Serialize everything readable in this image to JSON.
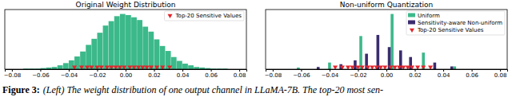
{
  "chart_data": [
    {
      "type": "histogram",
      "title": "Original Weight Distribution",
      "bins": [
        -0.072,
        -0.068,
        -0.064,
        -0.06,
        -0.056,
        -0.052,
        -0.048,
        -0.044,
        -0.04,
        -0.036,
        -0.032,
        -0.028,
        -0.024,
        -0.02,
        -0.016,
        -0.012,
        -0.008,
        -0.004,
        0,
        0.004,
        0.008,
        0.012,
        0.016,
        0.02,
        0.024,
        0.028,
        0.032,
        0.036,
        0.04,
        0.044,
        0.048,
        0.052,
        0.056,
        0.06,
        0.064,
        0.068,
        0.072
      ],
      "values": [
        1,
        1,
        1,
        2,
        3,
        4,
        7,
        11,
        16,
        23,
        32,
        44,
        55,
        66,
        79,
        87,
        96,
        100,
        98,
        94,
        89,
        77,
        68,
        54,
        42,
        33,
        22,
        15,
        10,
        7,
        4,
        3,
        2,
        1,
        1,
        1
      ],
      "color": "#3cb98a",
      "xlim": [
        -0.085,
        0.085
      ],
      "xticks": [
        {
          "value": -0.08,
          "label": "−0.08"
        },
        {
          "value": -0.06,
          "label": "−0.06"
        },
        {
          "value": -0.04,
          "label": "−0.04"
        },
        {
          "value": -0.02,
          "label": "−0.02"
        },
        {
          "value": 0,
          "label": "0.00"
        },
        {
          "value": 0.02,
          "label": "0.02"
        },
        {
          "value": 0.04,
          "label": "0.04"
        },
        {
          "value": 0.06,
          "label": "0.06"
        },
        {
          "value": 0.08,
          "label": "0.08"
        }
      ],
      "ylim": [
        0,
        108
      ],
      "tick_labels": "x",
      "legend": "upper right",
      "series": [
        {
          "name": "Top-20 Sensitive Values",
          "type": "scatter",
          "marker": "triangle_down",
          "color": "#e3242b",
          "x": [
            -0.036,
            -0.031,
            -0.027,
            -0.024,
            -0.02,
            -0.017,
            -0.013,
            -0.01,
            -0.007,
            -0.004,
            -0.001,
            0.003,
            0.006,
            0.009,
            0.012,
            0.015,
            0.018,
            0.022,
            0.026,
            0.031
          ],
          "values": [
            4,
            4,
            4,
            4,
            4,
            4,
            4,
            4,
            4,
            4,
            4,
            4,
            4,
            4,
            4,
            4,
            4,
            4,
            4,
            4
          ]
        }
      ]
    },
    {
      "type": "bar",
      "title": "Non-uniform Quantization",
      "xlim": [
        -0.085,
        0.085
      ],
      "xticks": [
        {
          "value": -0.08,
          "label": "−0.08"
        },
        {
          "value": -0.06,
          "label": "−0.06"
        },
        {
          "value": -0.04,
          "label": "−0.04"
        },
        {
          "value": -0.02,
          "label": "−0.02"
        },
        {
          "value": 0,
          "label": "0.00"
        },
        {
          "value": 0.02,
          "label": "0.02"
        },
        {
          "value": 0.04,
          "label": "0.04"
        },
        {
          "value": 0.06,
          "label": "0.06"
        },
        {
          "value": 0.08,
          "label": "0.08"
        }
      ],
      "ylim": [
        0,
        108
      ],
      "tick_labels": "x",
      "legend": "upper right",
      "series": [
        {
          "name": "Uniform",
          "type": "bar",
          "color": "#3cb98a",
          "x": [
            -0.062,
            -0.04,
            -0.018,
            0.004,
            0.026,
            0.048
          ],
          "values": [
            3,
            12,
            60,
            100,
            30,
            5
          ]
        },
        {
          "name": "Sensitivity-aware Non-uniform",
          "type": "bar",
          "color": "#3b2c6e",
          "x": [
            -0.048,
            -0.032,
            -0.022,
            -0.014,
            -0.006,
            0.002,
            0.01,
            0.017,
            0.034,
            0.046
          ],
          "values": [
            4,
            9,
            16,
            28,
            62,
            40,
            34,
            22,
            12,
            5
          ]
        },
        {
          "name": "Top-20 Sensitive Values",
          "type": "scatter",
          "marker": "triangle_down",
          "color": "#e3242b",
          "x": [
            -0.036,
            -0.031,
            -0.027,
            -0.024,
            -0.02,
            -0.017,
            -0.013,
            -0.01,
            -0.007,
            -0.004,
            -0.001,
            0.003,
            0.006,
            0.009,
            0.012,
            0.015,
            0.018,
            0.022,
            0.026,
            0.031
          ],
          "values": [
            4,
            4,
            4,
            4,
            4,
            4,
            4,
            4,
            4,
            4,
            4,
            4,
            4,
            4,
            4,
            4,
            4,
            4,
            4,
            4
          ]
        }
      ]
    }
  ],
  "caption": {
    "label": "Figure 3:",
    "text": "(Left) The weight distribution of one output channel in LLaMA-7B. The top-20 most sen-"
  }
}
